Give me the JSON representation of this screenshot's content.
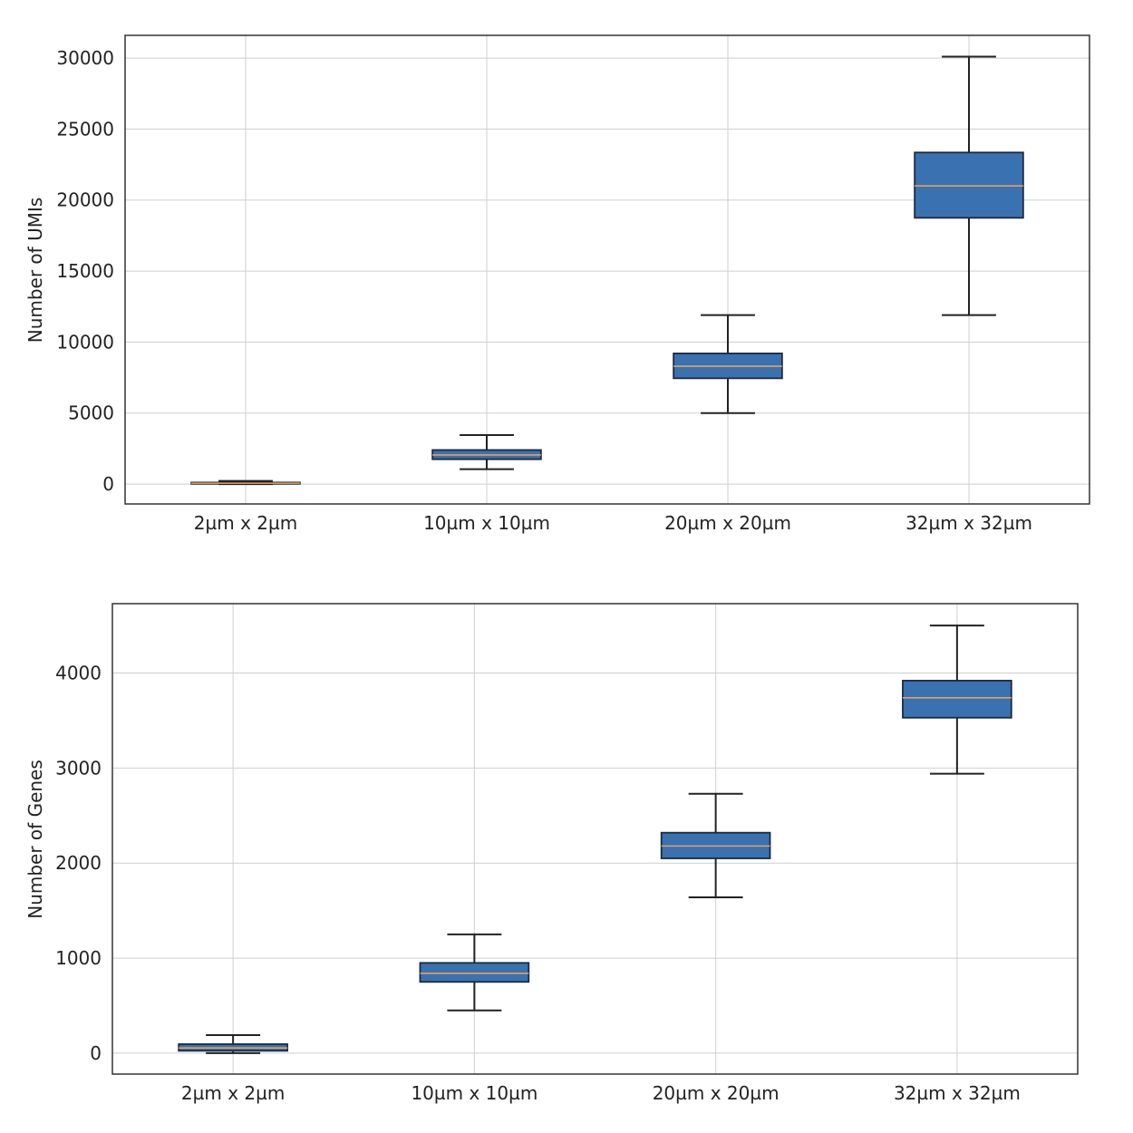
{
  "colors": {
    "box_fill": "#3a71b1",
    "median": "#e8a05a",
    "grid": "#cfcfcf"
  },
  "chart_data": [
    {
      "type": "box",
      "title": "",
      "xlabel": "",
      "ylabel": "Number of UMIs",
      "categories": [
        "2µm x 2µm",
        "10µm x 10µm",
        "20µm x 20µm",
        "32µm x 32µm"
      ],
      "ylim": [
        -1400,
        31600
      ],
      "yticks": [
        0,
        5000,
        10000,
        15000,
        20000,
        25000,
        30000
      ],
      "grid": true,
      "boxes": [
        {
          "whislo": 0,
          "q1": 20,
          "med": 60,
          "q3": 110,
          "whishi": 220
        },
        {
          "whislo": 1050,
          "q1": 1750,
          "med": 2050,
          "q3": 2400,
          "whishi": 3450
        },
        {
          "whislo": 5000,
          "q1": 7450,
          "med": 8300,
          "q3": 9200,
          "whishi": 11900
        },
        {
          "whislo": 11900,
          "q1": 18750,
          "med": 21000,
          "q3": 23350,
          "whishi": 30100
        }
      ]
    },
    {
      "type": "box",
      "title": "",
      "xlabel": "",
      "ylabel": "Number of Genes",
      "categories": [
        "2µm x 2µm",
        "10µm x 10µm",
        "20µm x 20µm",
        "32µm x 32µm"
      ],
      "ylim": [
        -220,
        4730
      ],
      "yticks": [
        0,
        1000,
        2000,
        3000,
        4000
      ],
      "grid": true,
      "boxes": [
        {
          "whislo": 0,
          "q1": 25,
          "med": 55,
          "q3": 95,
          "whishi": 190
        },
        {
          "whislo": 450,
          "q1": 750,
          "med": 840,
          "q3": 950,
          "whishi": 1250
        },
        {
          "whislo": 1640,
          "q1": 2050,
          "med": 2180,
          "q3": 2320,
          "whishi": 2730
        },
        {
          "whislo": 2940,
          "q1": 3530,
          "med": 3740,
          "q3": 3920,
          "whishi": 4500
        }
      ]
    }
  ]
}
